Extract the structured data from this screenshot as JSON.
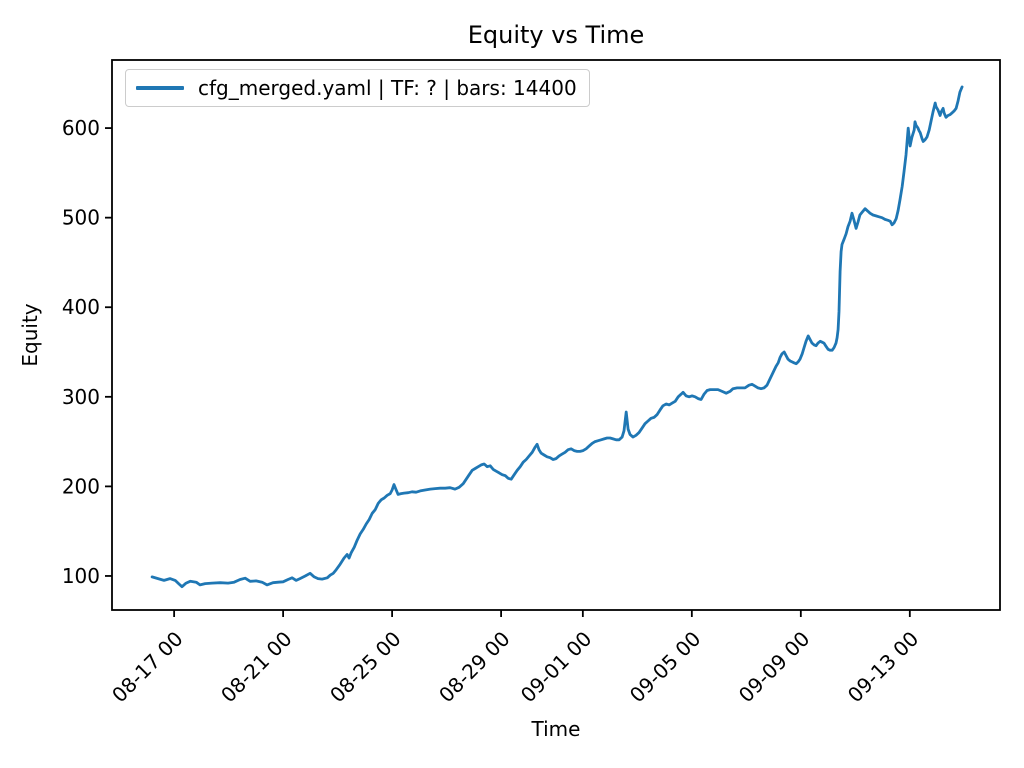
{
  "chart_data": {
    "type": "line",
    "title": "Equity vs Time",
    "xlabel": "Time",
    "ylabel": "Equity",
    "legend_position": "upper left",
    "grid": false,
    "line_color": "#1f77b4",
    "x_axis": {
      "unit": "days since 08-17 00:00",
      "lim": [
        -2.28,
        30.31
      ],
      "ticks": [
        0,
        4,
        8,
        12,
        15,
        19,
        23,
        27
      ],
      "tick_labels": [
        "08-17 00",
        "08-21 00",
        "08-25 00",
        "08-29 00",
        "09-01 00",
        "09-05 00",
        "09-09 00",
        "09-13 00"
      ],
      "tick_rotation_deg": 45
    },
    "y_axis": {
      "lim": [
        62,
        676
      ],
      "ticks": [
        100,
        200,
        300,
        400,
        500,
        600
      ],
      "tick_labels": [
        "100",
        "200",
        "300",
        "400",
        "500",
        "600"
      ]
    },
    "series": [
      {
        "name": "cfg_merged.yaml | TF: ? | bars: 14400",
        "points": [
          [
            -0.81,
            99
          ],
          [
            -0.59,
            97
          ],
          [
            -0.37,
            95
          ],
          [
            -0.15,
            97
          ],
          [
            0.04,
            95
          ],
          [
            0.18,
            91
          ],
          [
            0.29,
            88
          ],
          [
            0.44,
            92
          ],
          [
            0.59,
            94
          ],
          [
            0.81,
            93
          ],
          [
            0.95,
            90
          ],
          [
            1.14,
            91.5
          ],
          [
            1.39,
            92
          ],
          [
            1.69,
            92.5
          ],
          [
            1.98,
            92
          ],
          [
            2.2,
            93
          ],
          [
            2.42,
            96
          ],
          [
            2.61,
            97.5
          ],
          [
            2.79,
            94
          ],
          [
            3.01,
            94.5
          ],
          [
            3.23,
            93
          ],
          [
            3.41,
            90
          ],
          [
            3.63,
            92.5
          ],
          [
            3.82,
            93
          ],
          [
            4.0,
            93.5
          ],
          [
            4.18,
            96
          ],
          [
            4.33,
            98
          ],
          [
            4.48,
            95
          ],
          [
            4.62,
            97
          ],
          [
            4.81,
            100
          ],
          [
            4.99,
            103
          ],
          [
            5.14,
            99
          ],
          [
            5.28,
            97
          ],
          [
            5.43,
            96.5
          ],
          [
            5.62,
            98
          ],
          [
            5.73,
            101
          ],
          [
            5.84,
            103
          ],
          [
            5.95,
            107
          ],
          [
            6.09,
            113
          ],
          [
            6.24,
            120
          ],
          [
            6.35,
            124
          ],
          [
            6.42,
            120
          ],
          [
            6.5,
            126
          ],
          [
            6.61,
            132
          ],
          [
            6.72,
            140
          ],
          [
            6.83,
            147
          ],
          [
            6.94,
            152
          ],
          [
            7.05,
            158
          ],
          [
            7.16,
            163
          ],
          [
            7.27,
            170
          ],
          [
            7.38,
            174
          ],
          [
            7.49,
            181
          ],
          [
            7.6,
            185
          ],
          [
            7.71,
            187
          ],
          [
            7.82,
            190
          ],
          [
            7.93,
            192
          ],
          [
            8.0,
            196
          ],
          [
            8.07,
            202
          ],
          [
            8.15,
            196
          ],
          [
            8.22,
            191
          ],
          [
            8.33,
            192
          ],
          [
            8.44,
            192.5
          ],
          [
            8.59,
            193
          ],
          [
            8.73,
            194
          ],
          [
            8.88,
            193.5
          ],
          [
            9.03,
            195
          ],
          [
            9.21,
            196
          ],
          [
            9.4,
            197
          ],
          [
            9.58,
            197.5
          ],
          [
            9.76,
            198
          ],
          [
            9.95,
            198
          ],
          [
            10.13,
            198.5
          ],
          [
            10.31,
            197
          ],
          [
            10.46,
            199
          ],
          [
            10.61,
            203
          ],
          [
            10.72,
            208
          ],
          [
            10.83,
            213
          ],
          [
            10.94,
            218
          ],
          [
            11.05,
            220
          ],
          [
            11.16,
            222
          ],
          [
            11.27,
            224
          ],
          [
            11.38,
            225
          ],
          [
            11.49,
            222
          ],
          [
            11.6,
            223
          ],
          [
            11.71,
            219
          ],
          [
            11.82,
            217
          ],
          [
            11.93,
            215
          ],
          [
            12.04,
            213
          ],
          [
            12.15,
            212
          ],
          [
            12.26,
            209
          ],
          [
            12.37,
            208
          ],
          [
            12.48,
            213
          ],
          [
            12.59,
            218
          ],
          [
            12.7,
            222
          ],
          [
            12.81,
            227
          ],
          [
            12.92,
            230
          ],
          [
            13.03,
            234
          ],
          [
            13.14,
            238
          ],
          [
            13.25,
            244
          ],
          [
            13.32,
            247
          ],
          [
            13.39,
            241
          ],
          [
            13.47,
            237
          ],
          [
            13.58,
            235
          ],
          [
            13.69,
            233
          ],
          [
            13.8,
            232
          ],
          [
            13.91,
            230
          ],
          [
            14.02,
            231
          ],
          [
            14.13,
            234
          ],
          [
            14.24,
            236
          ],
          [
            14.35,
            238
          ],
          [
            14.46,
            241
          ],
          [
            14.57,
            242
          ],
          [
            14.68,
            240
          ],
          [
            14.79,
            239
          ],
          [
            14.9,
            239
          ],
          [
            15.01,
            240
          ],
          [
            15.12,
            242
          ],
          [
            15.23,
            245
          ],
          [
            15.34,
            248
          ],
          [
            15.45,
            250
          ],
          [
            15.56,
            251
          ],
          [
            15.67,
            252
          ],
          [
            15.78,
            253
          ],
          [
            15.89,
            254
          ],
          [
            16.0,
            254
          ],
          [
            16.11,
            253
          ],
          [
            16.22,
            252
          ],
          [
            16.33,
            252
          ],
          [
            16.44,
            255
          ],
          [
            16.51,
            262
          ],
          [
            16.59,
            283
          ],
          [
            16.66,
            264
          ],
          [
            16.73,
            258
          ],
          [
            16.84,
            255
          ],
          [
            16.95,
            257
          ],
          [
            17.06,
            260
          ],
          [
            17.17,
            265
          ],
          [
            17.28,
            270
          ],
          [
            17.39,
            273
          ],
          [
            17.5,
            276
          ],
          [
            17.61,
            277
          ],
          [
            17.72,
            280
          ],
          [
            17.83,
            285
          ],
          [
            17.94,
            290
          ],
          [
            18.06,
            292
          ],
          [
            18.17,
            291
          ],
          [
            18.28,
            293
          ],
          [
            18.39,
            295
          ],
          [
            18.5,
            300
          ],
          [
            18.61,
            303
          ],
          [
            18.68,
            305
          ],
          [
            18.79,
            301
          ],
          [
            18.9,
            300
          ],
          [
            19.01,
            301
          ],
          [
            19.12,
            300
          ],
          [
            19.23,
            298
          ],
          [
            19.34,
            297
          ],
          [
            19.45,
            303
          ],
          [
            19.56,
            307
          ],
          [
            19.67,
            308
          ],
          [
            19.82,
            308
          ],
          [
            19.96,
            308
          ],
          [
            20.11,
            306
          ],
          [
            20.26,
            304
          ],
          [
            20.4,
            306
          ],
          [
            20.51,
            309
          ],
          [
            20.66,
            310
          ],
          [
            20.81,
            310
          ],
          [
            20.95,
            310
          ],
          [
            21.1,
            313
          ],
          [
            21.21,
            314
          ],
          [
            21.32,
            312
          ],
          [
            21.43,
            310
          ],
          [
            21.54,
            309
          ],
          [
            21.65,
            310
          ],
          [
            21.76,
            313
          ],
          [
            21.87,
            320
          ],
          [
            21.98,
            327
          ],
          [
            22.09,
            334
          ],
          [
            22.17,
            338
          ],
          [
            22.24,
            344
          ],
          [
            22.31,
            348
          ],
          [
            22.39,
            350
          ],
          [
            22.46,
            346
          ],
          [
            22.53,
            342
          ],
          [
            22.61,
            340
          ],
          [
            22.68,
            339
          ],
          [
            22.75,
            338
          ],
          [
            22.83,
            337
          ],
          [
            22.9,
            339
          ],
          [
            22.97,
            342
          ],
          [
            23.05,
            348
          ],
          [
            23.12,
            355
          ],
          [
            23.19,
            362
          ],
          [
            23.27,
            368
          ],
          [
            23.34,
            364
          ],
          [
            23.41,
            360
          ],
          [
            23.49,
            358
          ],
          [
            23.56,
            357
          ],
          [
            23.63,
            360
          ],
          [
            23.71,
            362
          ],
          [
            23.78,
            361
          ],
          [
            23.85,
            360
          ],
          [
            23.93,
            356
          ],
          [
            24.0,
            353
          ],
          [
            24.07,
            352
          ],
          [
            24.15,
            352
          ],
          [
            24.22,
            355
          ],
          [
            24.29,
            360
          ],
          [
            24.33,
            366
          ],
          [
            24.37,
            375
          ],
          [
            24.4,
            395
          ],
          [
            24.44,
            440
          ],
          [
            24.48,
            462
          ],
          [
            24.51,
            470
          ],
          [
            24.59,
            476
          ],
          [
            24.66,
            482
          ],
          [
            24.73,
            490
          ],
          [
            24.81,
            496
          ],
          [
            24.88,
            505
          ],
          [
            24.95,
            497
          ],
          [
            25.03,
            488
          ],
          [
            25.1,
            495
          ],
          [
            25.17,
            503
          ],
          [
            25.25,
            506
          ],
          [
            25.36,
            510
          ],
          [
            25.47,
            507
          ],
          [
            25.54,
            505
          ],
          [
            25.65,
            503
          ],
          [
            25.76,
            502
          ],
          [
            25.87,
            501
          ],
          [
            25.98,
            500
          ],
          [
            26.09,
            498
          ],
          [
            26.2,
            497
          ],
          [
            26.28,
            496
          ],
          [
            26.35,
            492
          ],
          [
            26.42,
            494
          ],
          [
            26.5,
            499
          ],
          [
            26.57,
            508
          ],
          [
            26.64,
            520
          ],
          [
            26.72,
            535
          ],
          [
            26.79,
            552
          ],
          [
            26.86,
            570
          ],
          [
            26.94,
            600
          ],
          [
            26.97,
            592
          ],
          [
            27.01,
            580
          ],
          [
            27.05,
            586
          ],
          [
            27.08,
            590
          ],
          [
            27.16,
            598
          ],
          [
            27.19,
            607
          ],
          [
            27.23,
            603
          ],
          [
            27.3,
            600
          ],
          [
            27.34,
            597
          ],
          [
            27.38,
            595
          ],
          [
            27.45,
            588
          ],
          [
            27.49,
            585
          ],
          [
            27.56,
            587
          ],
          [
            27.63,
            590
          ],
          [
            27.71,
            598
          ],
          [
            27.78,
            608
          ],
          [
            27.85,
            618
          ],
          [
            27.93,
            628
          ],
          [
            27.96,
            624
          ],
          [
            28.04,
            620
          ],
          [
            28.11,
            614
          ],
          [
            28.15,
            618
          ],
          [
            28.22,
            622
          ],
          [
            28.26,
            617
          ],
          [
            28.33,
            612
          ],
          [
            28.4,
            614
          ],
          [
            28.48,
            615
          ],
          [
            28.55,
            617
          ],
          [
            28.62,
            619
          ],
          [
            28.7,
            622
          ],
          [
            28.77,
            630
          ],
          [
            28.84,
            640
          ],
          [
            28.92,
            646
          ]
        ]
      }
    ]
  }
}
